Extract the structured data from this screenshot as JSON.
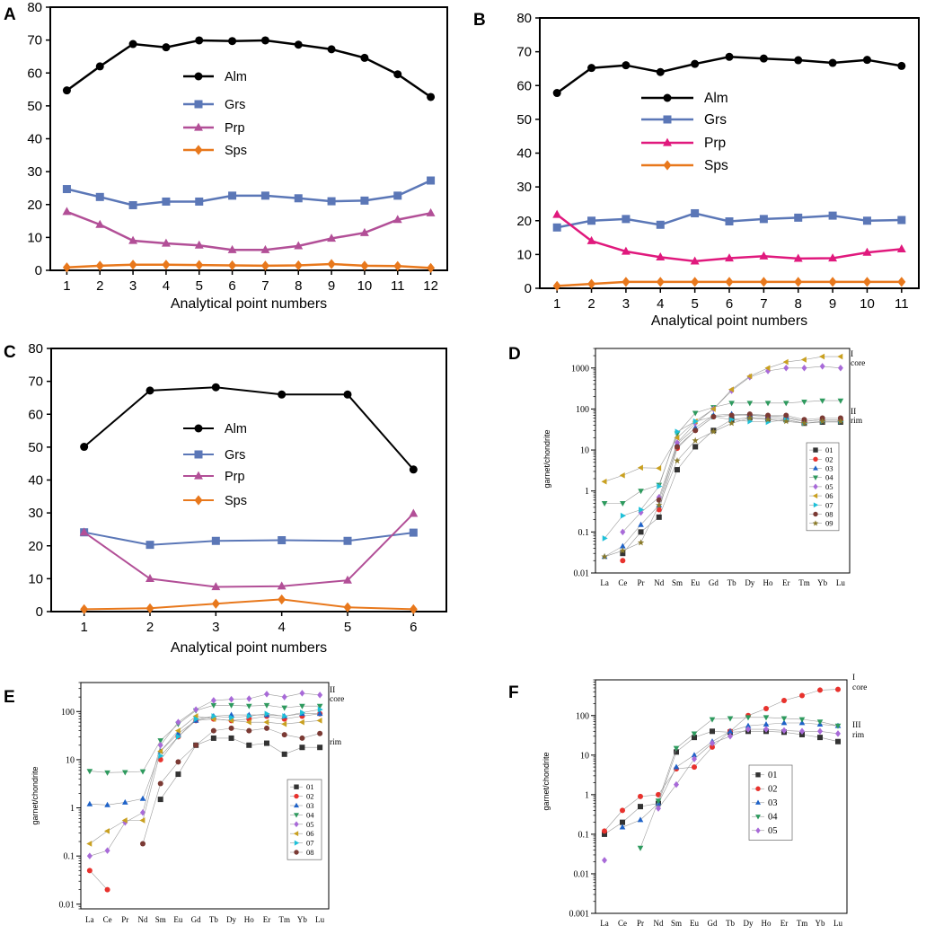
{
  "chart_data": [
    {
      "panel": "A",
      "type": "line",
      "x": [
        1,
        2,
        3,
        4,
        5,
        6,
        7,
        8,
        9,
        10,
        11,
        12
      ],
      "xlabel": "Analytical point numbers",
      "ylabel": "",
      "ylim": [
        0,
        80
      ],
      "yticks": [
        0,
        10,
        20,
        30,
        40,
        50,
        60,
        70,
        80
      ],
      "legend_position": "center",
      "series": [
        {
          "name": "Alm",
          "color": "#000000",
          "marker": "circle",
          "values": [
            54.7,
            62.0,
            68.8,
            67.8,
            69.9,
            69.7,
            69.9,
            68.6,
            67.2,
            64.6,
            59.6,
            52.7
          ]
        },
        {
          "name": "Grs",
          "color": "#5b77b7",
          "marker": "square",
          "values": [
            24.7,
            22.3,
            19.8,
            20.9,
            20.9,
            22.7,
            22.7,
            21.9,
            21.0,
            21.2,
            22.7,
            27.3
          ]
        },
        {
          "name": "Prp",
          "color": "#b24f97",
          "marker": "triangle",
          "values": [
            17.8,
            13.9,
            9.0,
            8.2,
            7.6,
            6.2,
            6.2,
            7.4,
            9.7,
            11.4,
            15.4,
            17.4
          ]
        },
        {
          "name": "Sps",
          "color": "#e8781c",
          "marker": "diamond",
          "values": [
            0.9,
            1.4,
            1.7,
            1.7,
            1.6,
            1.5,
            1.4,
            1.5,
            1.9,
            1.4,
            1.3,
            0.7
          ]
        }
      ]
    },
    {
      "panel": "B",
      "type": "line",
      "x": [
        1,
        2,
        3,
        4,
        5,
        6,
        7,
        8,
        9,
        10,
        11
      ],
      "xlabel": "Analytical point numbers",
      "ylabel": "",
      "ylim": [
        0,
        80
      ],
      "yticks": [
        0,
        10,
        20,
        30,
        40,
        50,
        60,
        70,
        80
      ],
      "legend_position": "center",
      "series": [
        {
          "name": "Alm",
          "color": "#000000",
          "marker": "circle",
          "values": [
            57.8,
            65.2,
            66.0,
            64.0,
            66.4,
            68.5,
            68.0,
            67.5,
            66.7,
            67.6,
            65.8
          ]
        },
        {
          "name": "Grs",
          "color": "#5b77b7",
          "marker": "square",
          "values": [
            18.0,
            20.0,
            20.5,
            18.8,
            22.2,
            19.8,
            20.5,
            20.9,
            21.5,
            20.0,
            20.2
          ]
        },
        {
          "name": "Prp",
          "color": "#e0197d",
          "marker": "triangle",
          "values": [
            21.8,
            14.0,
            10.9,
            9.2,
            8.0,
            8.9,
            9.5,
            8.8,
            8.9,
            10.6,
            11.6
          ]
        },
        {
          "name": "Sps",
          "color": "#e8781c",
          "marker": "diamond",
          "values": [
            0.7,
            1.3,
            1.9,
            1.9,
            1.9,
            1.9,
            1.9,
            1.9,
            1.9,
            1.9,
            1.9
          ]
        }
      ]
    },
    {
      "panel": "C",
      "type": "line",
      "x": [
        1,
        2,
        3,
        4,
        5,
        6
      ],
      "xlabel": "Analytical point numbers",
      "ylabel": "",
      "ylim": [
        0,
        80
      ],
      "yticks": [
        0,
        10,
        20,
        30,
        40,
        50,
        60,
        70,
        80
      ],
      "legend_position": "center",
      "series": [
        {
          "name": "Alm",
          "color": "#000000",
          "marker": "circle",
          "values": [
            50.1,
            67.2,
            68.2,
            66.0,
            66.0,
            43.2
          ]
        },
        {
          "name": "Grs",
          "color": "#5b77b7",
          "marker": "square",
          "values": [
            24.1,
            20.3,
            21.5,
            21.7,
            21.5,
            24.0
          ]
        },
        {
          "name": "Prp",
          "color": "#b24f97",
          "marker": "triangle",
          "values": [
            24.1,
            10.0,
            7.5,
            7.7,
            9.5,
            29.8
          ]
        },
        {
          "name": "Sps",
          "color": "#e8781c",
          "marker": "diamond",
          "values": [
            0.7,
            1.0,
            2.4,
            3.7,
            1.3,
            0.7
          ]
        }
      ]
    },
    {
      "panel": "D",
      "type": "line",
      "scale": "log",
      "categories": [
        "La",
        "Ce",
        "Pr",
        "Nd",
        "Sm",
        "Eu",
        "Gd",
        "Tb",
        "Dy",
        "Ho",
        "Er",
        "Tm",
        "Yb",
        "Lu"
      ],
      "ylabel": "garnet/chondrite",
      "ylim": [
        0.01,
        3000
      ],
      "ytick_values": [
        0.01,
        0.1,
        1,
        10,
        100,
        1000
      ],
      "ytick_labels": [
        "0.01",
        "0.1",
        "1",
        "10",
        "100",
        "1000"
      ],
      "legend_position": "right-middle",
      "annotations": [
        {
          "text": "I",
          "near": "top-right"
        },
        {
          "text": "core",
          "near": "top-right"
        },
        {
          "text": "II",
          "near": "right-middle"
        },
        {
          "text": "rim",
          "near": "right-middle"
        }
      ],
      "series": [
        {
          "name": "01",
          "color": "#333333",
          "marker": "square",
          "values": [
            null,
            0.03,
            0.1,
            0.23,
            3.3,
            12,
            30,
            55,
            62,
            58,
            55,
            45,
            48,
            48
          ]
        },
        {
          "name": "02",
          "color": "#e8322d",
          "marker": "circle",
          "values": [
            null,
            0.02,
            null,
            0.35,
            11,
            30,
            65,
            70,
            70,
            65,
            60,
            50,
            55,
            55
          ]
        },
        {
          "name": "03",
          "color": "#1e62c8",
          "marker": "triangle",
          "values": [
            0.025,
            0.045,
            0.15,
            0.45,
            14,
            35,
            70,
            75,
            72,
            68,
            65,
            50,
            55,
            55
          ]
        },
        {
          "name": "04",
          "color": "#2e9a5e",
          "marker": "triangle-down",
          "values": [
            0.5,
            0.5,
            1.0,
            1.4,
            25,
            80,
            110,
            140,
            140,
            140,
            140,
            150,
            160,
            160
          ]
        },
        {
          "name": "05",
          "color": "#a86ad8",
          "marker": "diamond",
          "values": [
            null,
            0.1,
            0.3,
            0.7,
            15,
            45,
            100,
            280,
            600,
            850,
            1000,
            1000,
            1100,
            1000
          ]
        },
        {
          "name": "06",
          "color": "#c9a020",
          "marker": "triangle-left",
          "values": [
            1.7,
            2.4,
            3.7,
            3.6,
            20,
            50,
            100,
            300,
            630,
            1000,
            1400,
            1600,
            1900,
            1900
          ]
        },
        {
          "name": "07",
          "color": "#1ec0d8",
          "marker": "triangle-right",
          "values": [
            0.07,
            0.25,
            0.35,
            1.3,
            28,
            50,
            65,
            55,
            50,
            48,
            55,
            45,
            50,
            50
          ]
        },
        {
          "name": "08",
          "color": "#7b3a34",
          "marker": "circle",
          "values": [
            null,
            null,
            null,
            0.6,
            12,
            30,
            65,
            70,
            75,
            70,
            70,
            55,
            60,
            60
          ]
        },
        {
          "name": "09",
          "color": "#8a7a2a",
          "marker": "star",
          "values": [
            0.025,
            0.035,
            0.055,
            0.45,
            5.5,
            17,
            28,
            45,
            60,
            55,
            50,
            45,
            50,
            50
          ]
        }
      ]
    },
    {
      "panel": "E",
      "type": "line",
      "scale": "log",
      "categories": [
        "La",
        "Ce",
        "Pr",
        "Nd",
        "Sm",
        "Eu",
        "Gd",
        "Tb",
        "Dy",
        "Ho",
        "Er",
        "Tm",
        "Yb",
        "Lu"
      ],
      "ylabel": "garnet/chondrite",
      "ylim": [
        0.008,
        400
      ],
      "ytick_values": [
        0.01,
        0.1,
        1,
        10,
        100
      ],
      "ytick_labels": [
        "0.01",
        "0.1",
        "1",
        "10",
        "100"
      ],
      "legend_position": "right-middle",
      "annotations": [
        {
          "text": "II",
          "near": "top-right"
        },
        {
          "text": "core",
          "near": "top-right"
        },
        {
          "text": "rim",
          "near": "right-middle"
        }
      ],
      "series": [
        {
          "name": "01",
          "color": "#333333",
          "marker": "square",
          "values": [
            null,
            null,
            null,
            null,
            1.5,
            5,
            20,
            28,
            28,
            20,
            22,
            13,
            18,
            18
          ]
        },
        {
          "name": "02",
          "color": "#e8322d",
          "marker": "circle",
          "values": [
            0.05,
            0.02,
            null,
            null,
            10,
            30,
            65,
            70,
            65,
            70,
            80,
            70,
            80,
            90
          ]
        },
        {
          "name": "03",
          "color": "#1e62c8",
          "marker": "triangle",
          "values": [
            1.2,
            1.15,
            1.3,
            1.55,
            15,
            35,
            65,
            80,
            85,
            85,
            85,
            80,
            90,
            90
          ]
        },
        {
          "name": "04",
          "color": "#2e9a5e",
          "marker": "triangle-down",
          "values": [
            5.8,
            5.4,
            5.5,
            5.7,
            25,
            55,
            105,
            135,
            135,
            130,
            135,
            120,
            130,
            130
          ]
        },
        {
          "name": "05",
          "color": "#a86ad8",
          "marker": "diamond",
          "values": [
            0.1,
            0.13,
            0.5,
            0.8,
            20,
            60,
            110,
            170,
            180,
            185,
            230,
            200,
            240,
            220
          ]
        },
        {
          "name": "06",
          "color": "#c9a020",
          "marker": "triangle-left",
          "values": [
            0.18,
            0.33,
            0.55,
            0.55,
            15,
            40,
            80,
            70,
            65,
            60,
            60,
            55,
            60,
            65
          ]
        },
        {
          "name": "07",
          "color": "#1ec0d8",
          "marker": "triangle-right",
          "values": [
            null,
            null,
            null,
            null,
            12,
            30,
            70,
            80,
            75,
            80,
            90,
            80,
            95,
            110
          ]
        },
        {
          "name": "08",
          "color": "#7b3a34",
          "marker": "circle",
          "values": [
            null,
            null,
            null,
            0.18,
            3.2,
            9,
            20,
            40,
            45,
            40,
            45,
            33,
            28,
            35
          ]
        }
      ]
    },
    {
      "panel": "F",
      "type": "line",
      "scale": "log",
      "categories": [
        "La",
        "Ce",
        "Pr",
        "Nd",
        "Sm",
        "Eu",
        "Gd",
        "Tb",
        "Dy",
        "Ho",
        "Er",
        "Tm",
        "Yb",
        "Lu"
      ],
      "ylabel": "garnet/chondrite",
      "ylim": [
        0.001,
        800
      ],
      "ytick_values": [
        0.001,
        0.01,
        0.1,
        1,
        10,
        100
      ],
      "ytick_labels": [
        "0.001",
        "0.01",
        "0.1",
        "1",
        "10",
        "100"
      ],
      "legend_position": "center",
      "annotations": [
        {
          "text": "I",
          "near": "top-right"
        },
        {
          "text": "core",
          "near": "top-right"
        },
        {
          "text": "III",
          "near": "right-middle"
        },
        {
          "text": "rim",
          "near": "right-middle"
        }
      ],
      "series": [
        {
          "name": "01",
          "color": "#333333",
          "marker": "square",
          "values": [
            0.1,
            0.2,
            0.5,
            0.6,
            12,
            28,
            40,
            38,
            40,
            40,
            38,
            33,
            28,
            22
          ]
        },
        {
          "name": "02",
          "color": "#e8322d",
          "marker": "circle",
          "values": [
            0.12,
            0.4,
            0.9,
            1.0,
            4.5,
            5,
            16,
            40,
            100,
            150,
            240,
            320,
            440,
            460
          ]
        },
        {
          "name": "03",
          "color": "#1e62c8",
          "marker": "triangle",
          "values": [
            null,
            0.15,
            0.23,
            0.6,
            5,
            10,
            22,
            40,
            55,
            60,
            65,
            65,
            60,
            55
          ]
        },
        {
          "name": "04",
          "color": "#2e9a5e",
          "marker": "triangle-down",
          "values": [
            null,
            null,
            0.045,
            0.7,
            15,
            35,
            80,
            85,
            90,
            90,
            85,
            80,
            70,
            55
          ]
        },
        {
          "name": "05",
          "color": "#a86ad8",
          "marker": "diamond",
          "values": [
            0.022,
            null,
            null,
            0.45,
            1.8,
            8,
            20,
            30,
            45,
            45,
            42,
            40,
            40,
            35
          ]
        }
      ]
    }
  ]
}
